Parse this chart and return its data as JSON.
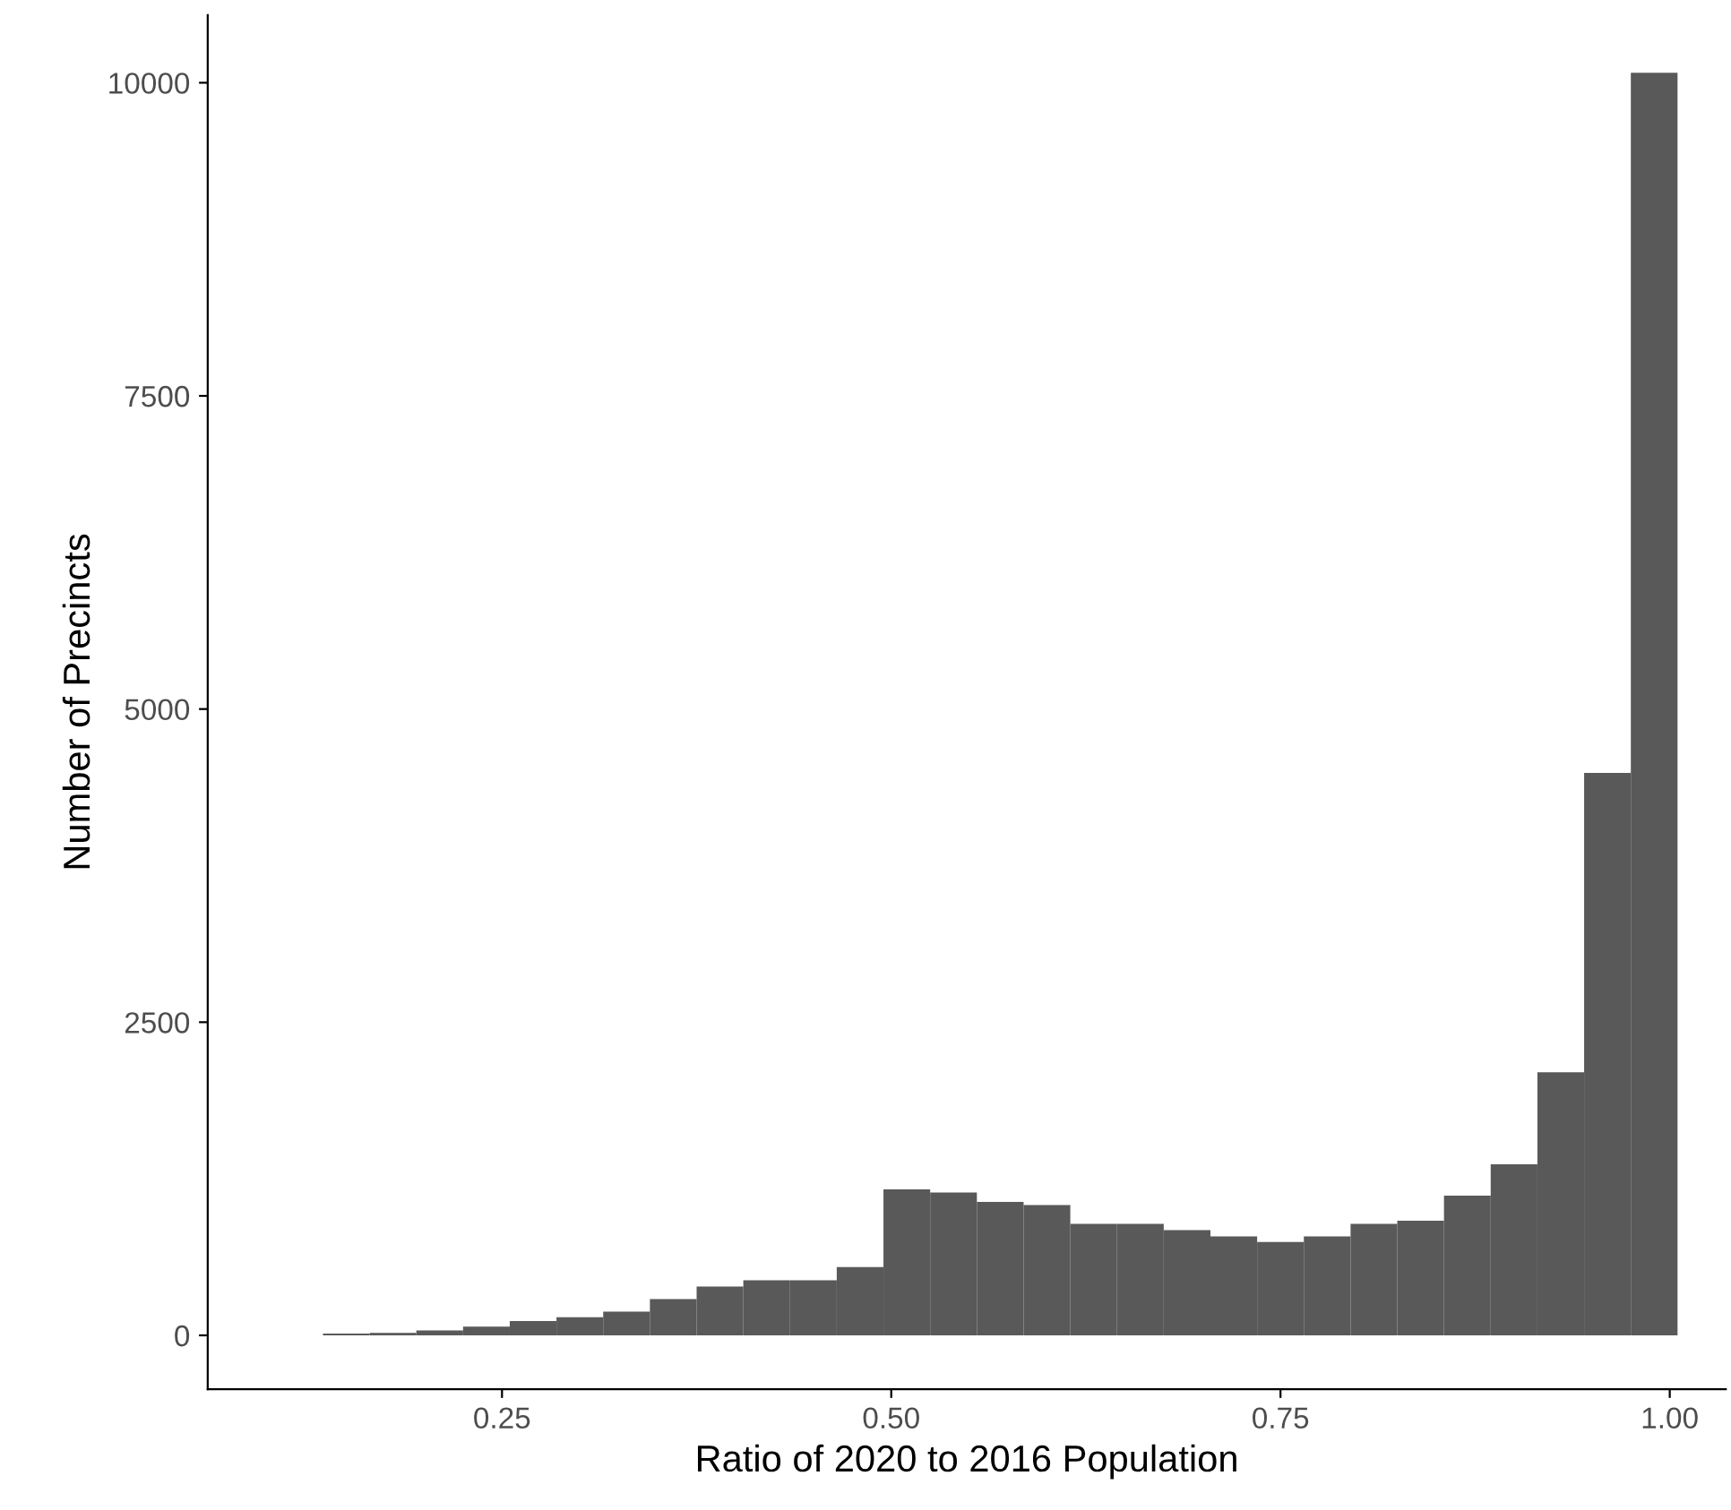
{
  "chart_data": {
    "type": "histogram",
    "xlabel": "Ratio of 2020 to 2016 Population",
    "ylabel": "Number of Precincts",
    "bins": [
      0.135,
      0.165,
      0.195,
      0.225,
      0.255,
      0.285,
      0.315,
      0.345,
      0.375,
      0.405,
      0.435,
      0.465,
      0.495,
      0.525,
      0.555,
      0.585,
      0.615,
      0.645,
      0.675,
      0.705,
      0.735,
      0.765,
      0.795,
      0.825,
      0.855,
      0.885,
      0.915,
      0.945,
      0.975,
      1.005
    ],
    "values": [
      15,
      20,
      40,
      70,
      115,
      145,
      190,
      290,
      390,
      440,
      440,
      545,
      1165,
      1140,
      1065,
      1040,
      890,
      890,
      840,
      790,
      745,
      790,
      890,
      915,
      1115,
      1365,
      2100,
      4490,
      10080
    ],
    "color": "#595959",
    "xlim": [
      0.061,
      1.036
    ],
    "ylim": [
      -430,
      10540
    ],
    "xticks": [
      {
        "value": 0.25,
        "label": "0.25"
      },
      {
        "value": 0.5,
        "label": "0.50"
      },
      {
        "value": 0.75,
        "label": "0.75"
      },
      {
        "value": 1.0,
        "label": "1.00"
      }
    ],
    "yticks": [
      0,
      2500,
      5000,
      7500,
      10000
    ],
    "grid": false
  }
}
